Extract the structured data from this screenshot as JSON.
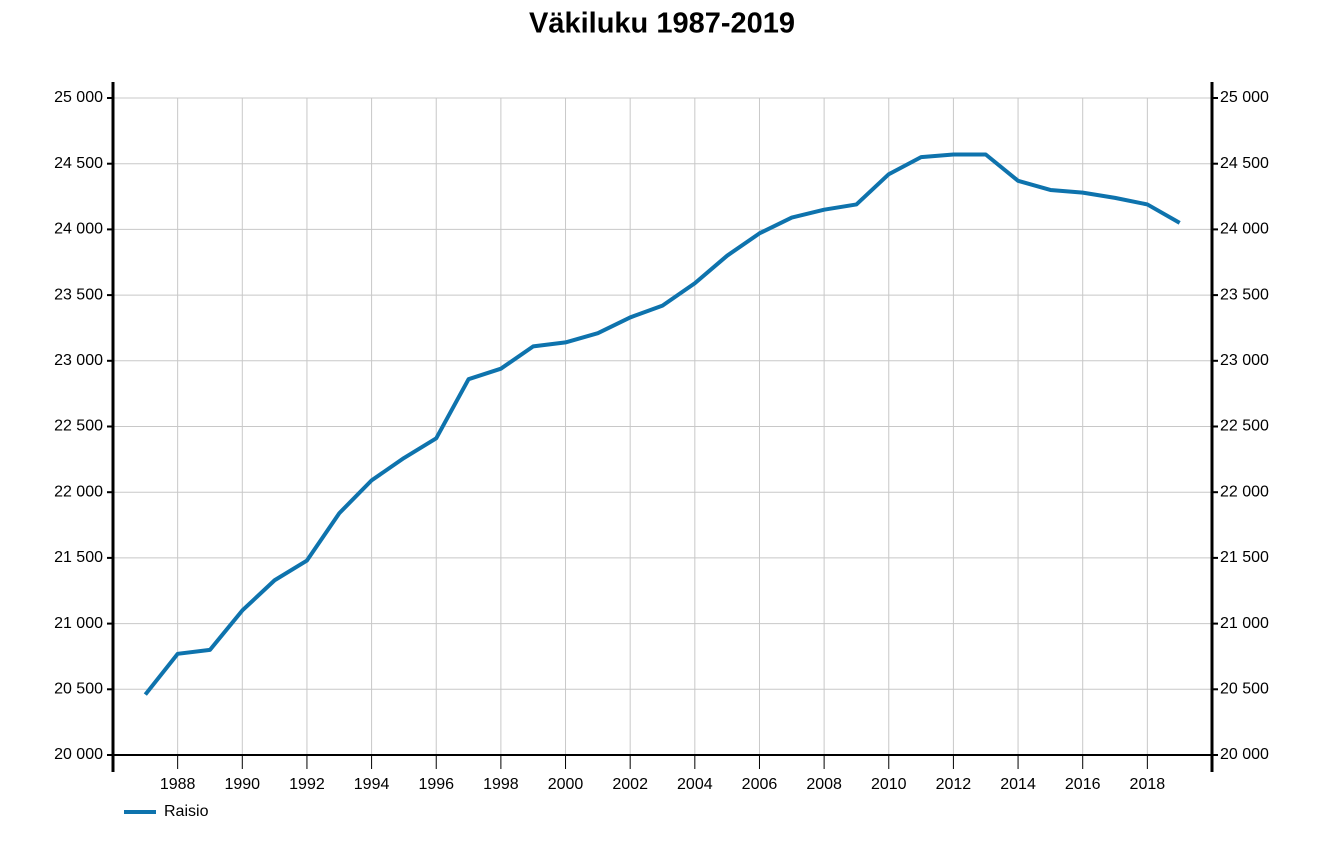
{
  "chart_data": {
    "type": "line",
    "title": "Väkiluku 1987-2019",
    "x": [
      1987,
      1988,
      1989,
      1990,
      1991,
      1992,
      1993,
      1994,
      1995,
      1996,
      1997,
      1998,
      1999,
      2000,
      2001,
      2002,
      2003,
      2004,
      2005,
      2006,
      2007,
      2008,
      2009,
      2010,
      2011,
      2012,
      2013,
      2014,
      2015,
      2016,
      2017,
      2018,
      2019
    ],
    "series": [
      {
        "name": "Raisio",
        "color": "#0e73ad",
        "values": [
          20460,
          20770,
          20800,
          21100,
          21330,
          21480,
          21840,
          22090,
          22260,
          22410,
          22860,
          22940,
          23110,
          23140,
          23210,
          23330,
          23420,
          23590,
          23800,
          23970,
          24090,
          24150,
          24190,
          24420,
          24550,
          24570,
          24570,
          24370,
          24300,
          24280,
          24240,
          24190,
          24050
        ]
      }
    ],
    "xlim": [
      1986,
      2020
    ],
    "xticks": [
      1988,
      1990,
      1992,
      1994,
      1996,
      1998,
      2000,
      2002,
      2004,
      2006,
      2008,
      2010,
      2012,
      2014,
      2016,
      2018
    ],
    "ylim": [
      20000,
      25000
    ],
    "yticks": [
      {
        "value": 20000,
        "label": "20 000"
      },
      {
        "value": 20500,
        "label": "20 500"
      },
      {
        "value": 21000,
        "label": "21 000"
      },
      {
        "value": 21500,
        "label": "21 500"
      },
      {
        "value": 22000,
        "label": "22 000"
      },
      {
        "value": 22500,
        "label": "22 500"
      },
      {
        "value": 23000,
        "label": "23 000"
      },
      {
        "value": 23500,
        "label": "23 500"
      },
      {
        "value": 24000,
        "label": "24 000"
      },
      {
        "value": 24500,
        "label": "24 500"
      },
      {
        "value": 25000,
        "label": "25 000"
      }
    ],
    "grid": true,
    "legend": "bottom-left"
  }
}
